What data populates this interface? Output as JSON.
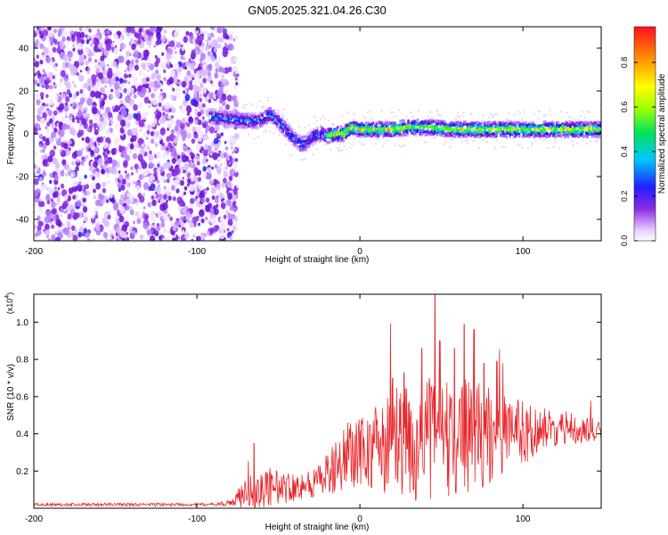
{
  "title": "GN05.2025.321.04.26.C30",
  "chart_data": [
    {
      "type": "heatmap",
      "xlabel": "Height of straight line (km)",
      "ylabel": "Frequency (Hz)",
      "xlim": [
        -200,
        148
      ],
      "ylim": [
        -50,
        50
      ],
      "x_ticks": [
        -200,
        -100,
        0,
        100
      ],
      "x_tick_labels": [
        "-200",
        "-100",
        "0",
        "100"
      ],
      "y_ticks": [
        -40,
        -20,
        0,
        20,
        40
      ],
      "y_tick_labels": [
        "-40",
        "-20",
        "0",
        "20",
        "40"
      ],
      "colorbar": {
        "label": "Normalized spectral amplitude",
        "range": [
          0.0,
          0.96
        ],
        "ticks": [
          0.0,
          0.2,
          0.4,
          0.6,
          0.8
        ],
        "tick_labels": [
          "0.0",
          "0.2",
          "0.4",
          "0.6",
          "0.8"
        ]
      },
      "ridge": {
        "x": [
          -92,
          -80,
          -70,
          -62,
          -55,
          -48,
          -42,
          -36,
          -32,
          -28,
          -24,
          -20,
          -15,
          -10,
          -5,
          0,
          10,
          20,
          30,
          40,
          60,
          80,
          100,
          120,
          148
        ],
        "y": [
          8,
          7,
          6,
          6,
          9,
          4,
          -1,
          -5,
          -4,
          -1,
          0,
          -1,
          0,
          0,
          3,
          2,
          2,
          2,
          3,
          3,
          2,
          2,
          2,
          2,
          2
        ]
      },
      "noise_region_x": [
        -200,
        -80
      ]
    },
    {
      "type": "line",
      "xlabel": "Height of straight line (km)",
      "ylabel": "SNR (10 * v/v)",
      "scale_label": "(x10",
      "scale_exponent": "4",
      "xlim": [
        -200,
        148
      ],
      "ylim": [
        0,
        1.15
      ],
      "x_ticks": [
        -200,
        -100,
        0,
        100
      ],
      "x_tick_labels": [
        "-200",
        "-100",
        "0",
        "100"
      ],
      "y_ticks": [
        0.2,
        0.4,
        0.6,
        0.8,
        1.0
      ],
      "y_tick_labels": [
        "0.2",
        "0.4",
        "0.6",
        "0.8",
        "1.0"
      ],
      "color": "#e8262a",
      "envelope": {
        "x": [
          -200,
          -90,
          -78,
          -72,
          -60,
          -50,
          -40,
          -30,
          -20,
          -10,
          0,
          10,
          20,
          30,
          40,
          46,
          50,
          60,
          70,
          80,
          90,
          100,
          110,
          120,
          130,
          140,
          148
        ],
        "base": [
          0.02,
          0.02,
          0.03,
          0.08,
          0.1,
          0.11,
          0.12,
          0.13,
          0.18,
          0.26,
          0.3,
          0.32,
          0.34,
          0.35,
          0.36,
          0.38,
          0.37,
          0.38,
          0.39,
          0.39,
          0.4,
          0.41,
          0.42,
          0.43,
          0.43,
          0.42,
          0.4
        ],
        "amp": [
          0.01,
          0.01,
          0.02,
          0.12,
          0.12,
          0.12,
          0.1,
          0.1,
          0.14,
          0.2,
          0.26,
          0.3,
          0.4,
          0.4,
          0.4,
          0.45,
          0.4,
          0.38,
          0.38,
          0.34,
          0.28,
          0.22,
          0.16,
          0.12,
          0.1,
          0.09,
          0.09
        ]
      },
      "peaks": [
        {
          "x": 46,
          "y": 1.15
        },
        {
          "x": 64,
          "y": 0.99
        },
        {
          "x": 70,
          "y": 0.96
        },
        {
          "x": 38,
          "y": 0.86
        },
        {
          "x": 49,
          "y": 0.9
        },
        {
          "x": 20,
          "y": 0.7
        },
        {
          "x": 27,
          "y": 0.73
        },
        {
          "x": 84,
          "y": 0.79
        },
        {
          "x": 76,
          "y": 0.78
        },
        {
          "x": 58,
          "y": 0.86
        },
        {
          "x": -65,
          "y": 0.35
        },
        {
          "x": 10,
          "y": 0.48
        }
      ]
    }
  ]
}
